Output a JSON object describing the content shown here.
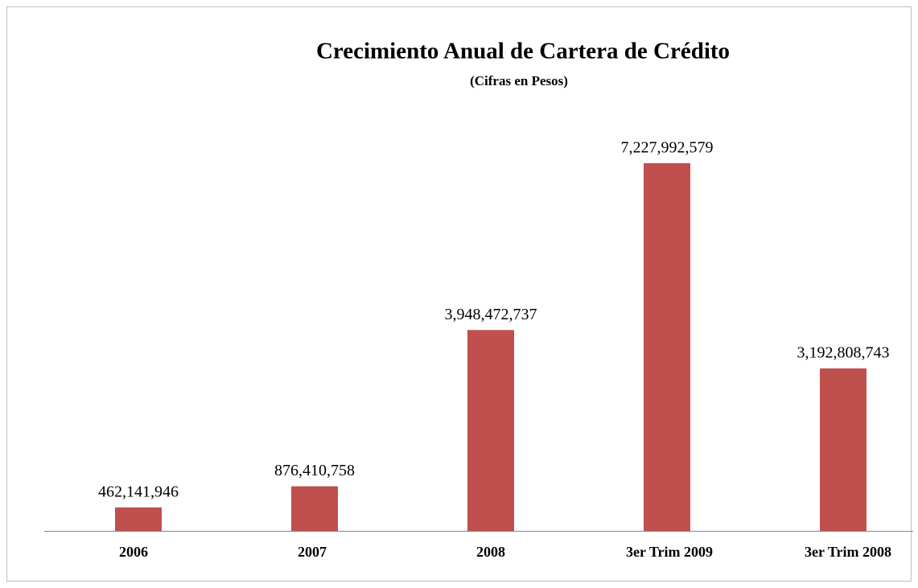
{
  "chart_data": {
    "type": "bar",
    "title": "Crecimiento Anual de Cartera de Crédito",
    "subtitle": "(Cifras en Pesos)",
    "categories": [
      "2006",
      "2007",
      "2008",
      "3er Trim 2009",
      "3er Trim 2008"
    ],
    "values": [
      462141946,
      876410758,
      3948472737,
      7227992579,
      3192808743
    ],
    "value_labels": [
      "462,141,946",
      "876,410,758",
      "3,948,472,737",
      "7,227,992,579",
      "3,192,808,743"
    ],
    "color": "#c0504d",
    "ylim": [
      0,
      8000000000
    ]
  }
}
